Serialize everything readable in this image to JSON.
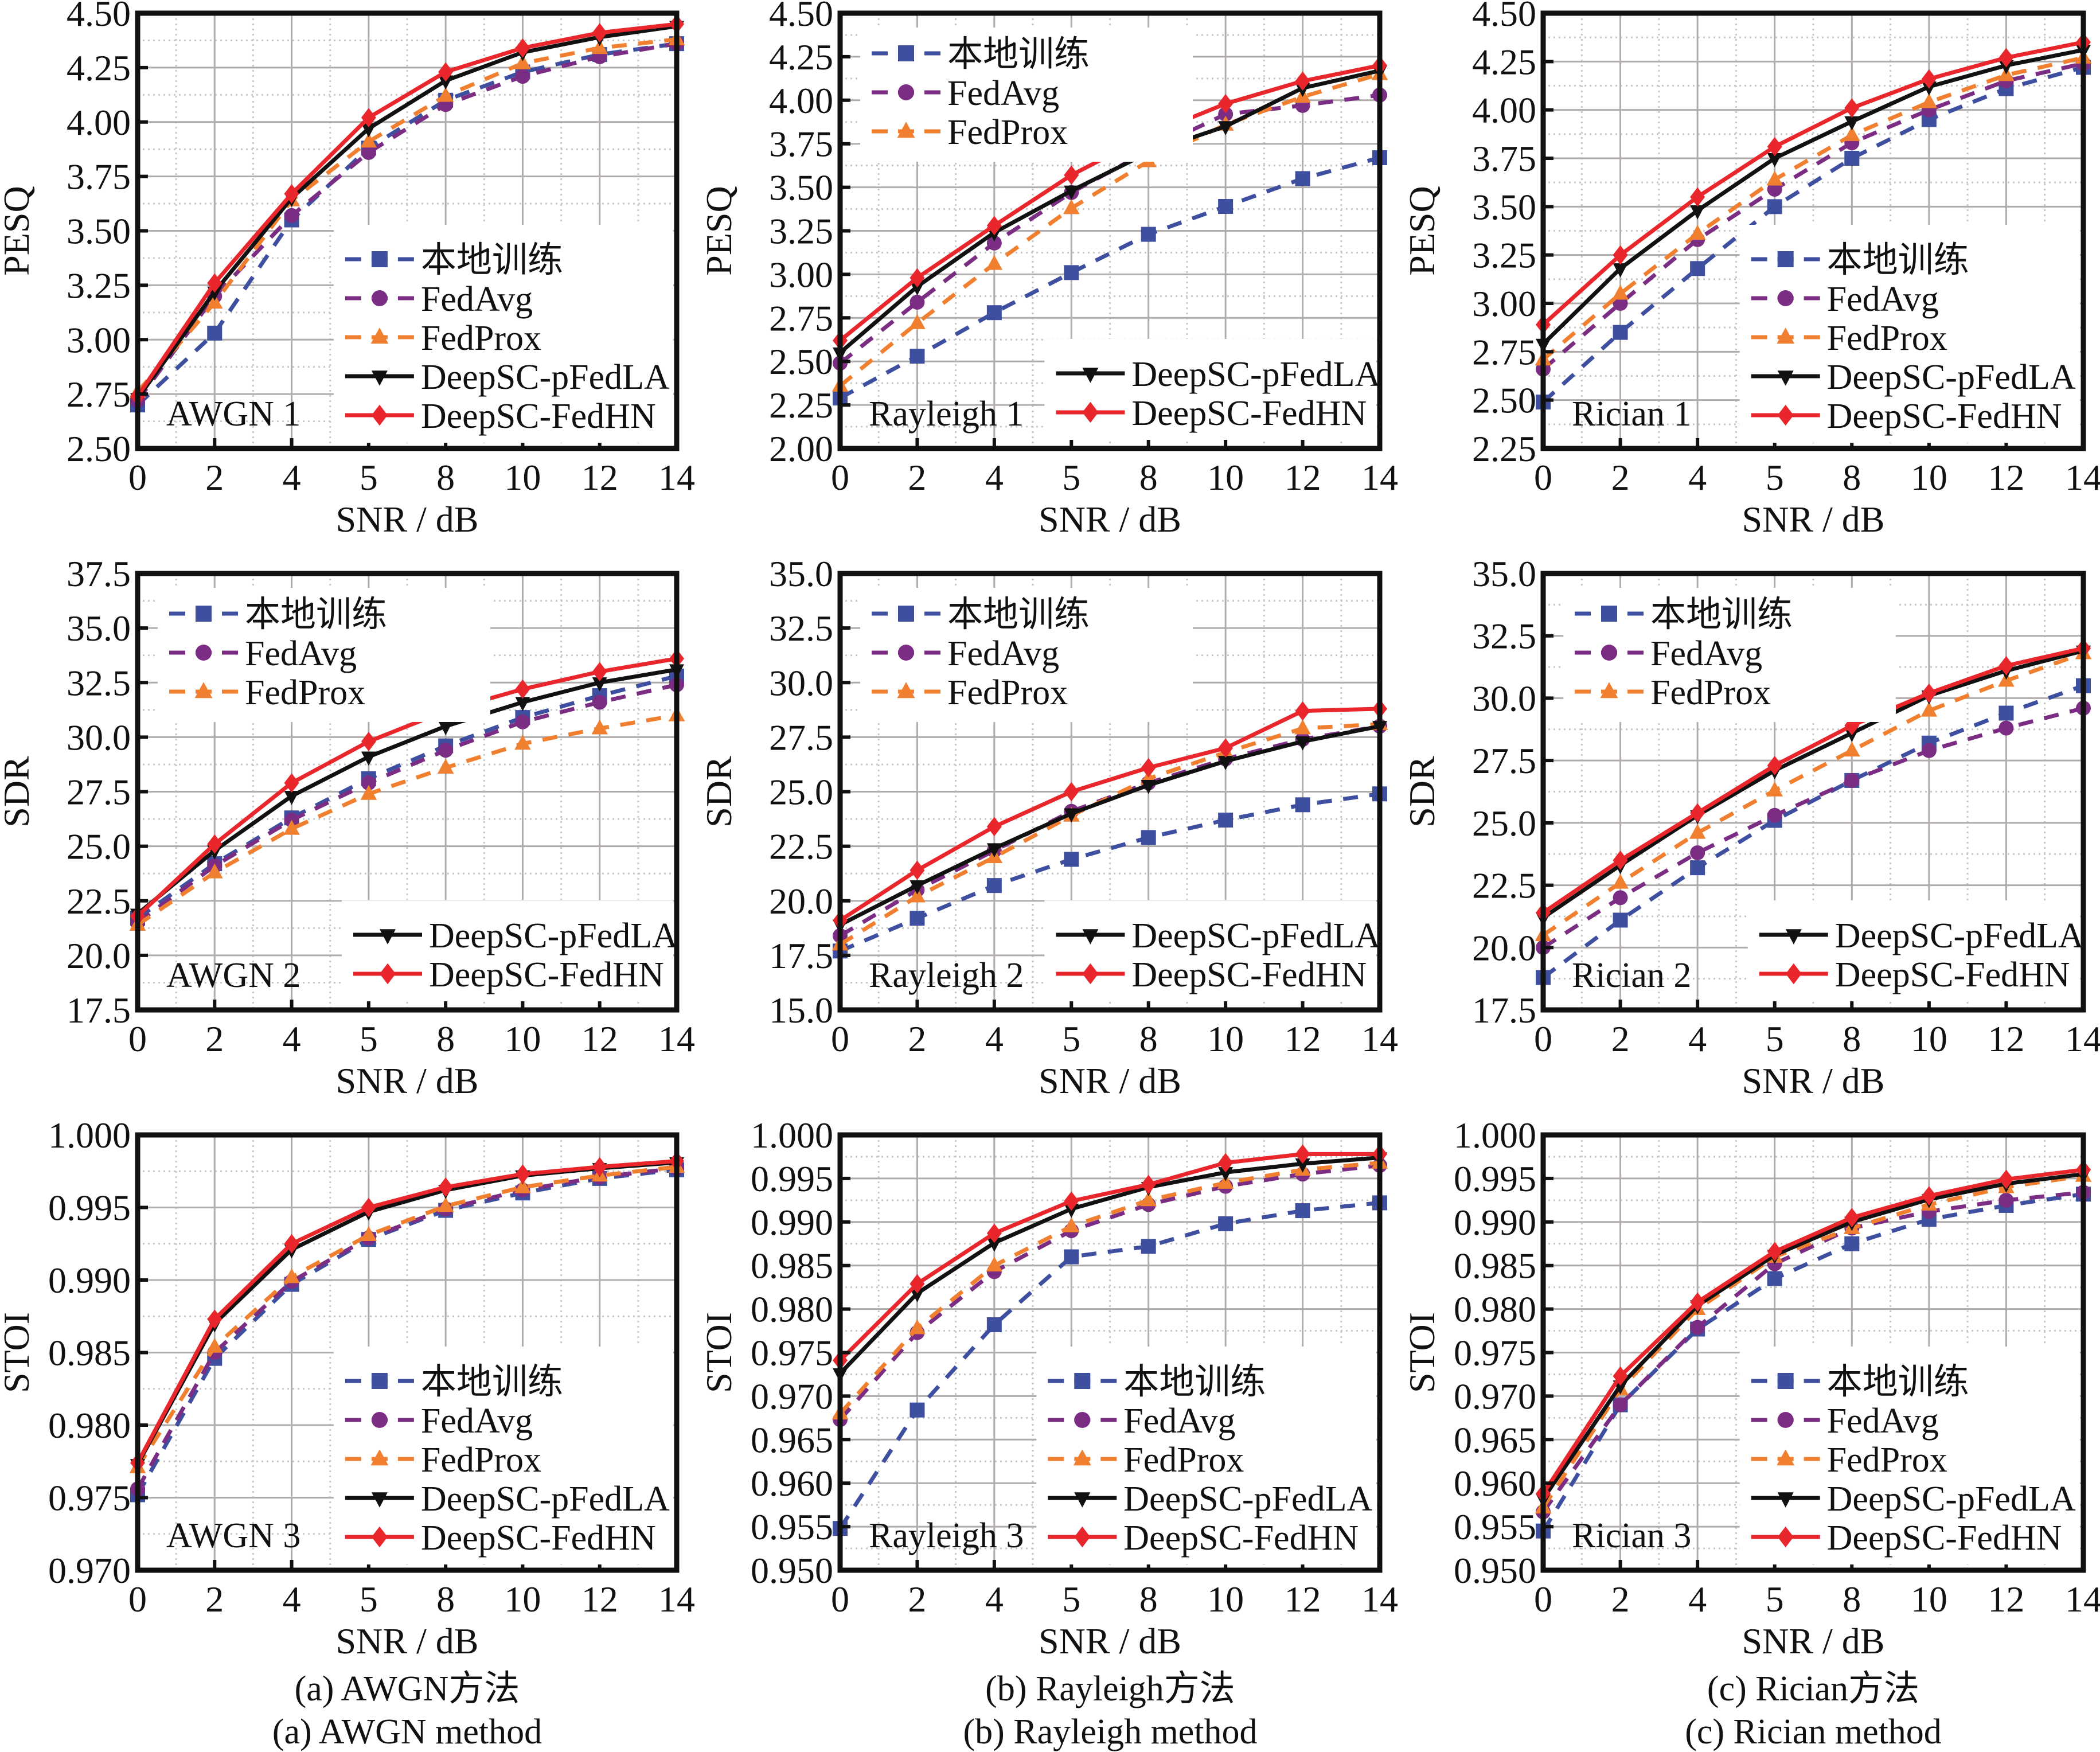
{
  "figure": {
    "x_axis_label": "SNR / dB",
    "captions": [
      {
        "zh": "(a) AWGN方法",
        "en": "(a) AWGN  method"
      },
      {
        "zh": "(b) Rayleigh方法",
        "en": "(b) Rayleigh method"
      },
      {
        "zh": "(c) Rician方法",
        "en": "(c) Rician method"
      }
    ]
  },
  "series_style": [
    {
      "name": "本地训练",
      "color": "#3F4FA0",
      "dash": true,
      "marker": "square"
    },
    {
      "name": "FedAvg",
      "color": "#7B2D83",
      "dash": true,
      "marker": "circle"
    },
    {
      "name": "FedProx",
      "color": "#F08030",
      "dash": true,
      "marker": "triangle-up"
    },
    {
      "name": "DeepSC-pFedLA",
      "color": "#111111",
      "dash": false,
      "marker": "triangle-down"
    },
    {
      "name": "DeepSC-FedHN",
      "color": "#E8262B",
      "dash": false,
      "marker": "diamond"
    }
  ],
  "chart_data": [
    {
      "type": "line",
      "title": "AWGN 1",
      "xlabel": "SNR / dB",
      "ylabel": "PESQ",
      "categories": [
        "0",
        "2",
        "4",
        "5",
        "8",
        "10",
        "12",
        "14"
      ],
      "ylim": [
        2.5,
        4.5
      ],
      "yticks": [
        "2.50",
        "2.75",
        "3.00",
        "3.25",
        "3.50",
        "3.75",
        "4.00",
        "4.25",
        "4.50"
      ],
      "grid": true,
      "legend": "bottom-right",
      "series": [
        {
          "name": "本地训练",
          "values": [
            2.7,
            3.03,
            3.55,
            3.88,
            4.1,
            4.23,
            4.31,
            4.36
          ]
        },
        {
          "name": "FedAvg",
          "values": [
            2.72,
            3.2,
            3.57,
            3.86,
            4.08,
            4.21,
            4.3,
            4.36
          ]
        },
        {
          "name": "FedProx",
          "values": [
            2.76,
            3.17,
            3.64,
            3.91,
            4.12,
            4.27,
            4.34,
            4.38
          ]
        },
        {
          "name": "DeepSC-pFedLA",
          "values": [
            2.73,
            3.22,
            3.65,
            3.97,
            4.19,
            4.32,
            4.39,
            4.44
          ]
        },
        {
          "name": "DeepSC-FedHN",
          "values": [
            2.74,
            3.26,
            3.67,
            4.02,
            4.23,
            4.34,
            4.41,
            4.45
          ]
        }
      ]
    },
    {
      "type": "line",
      "title": "Rayleigh 1",
      "xlabel": "SNR / dB",
      "ylabel": "PESQ",
      "categories": [
        "0",
        "2",
        "4",
        "5",
        "8",
        "10",
        "12",
        "14"
      ],
      "ylim": [
        2.0,
        4.5
      ],
      "yticks": [
        "2.00",
        "2.25",
        "2.50",
        "2.75",
        "3.00",
        "3.25",
        "3.50",
        "3.75",
        "4.00",
        "4.25",
        "4.50"
      ],
      "grid": true,
      "legend": "split: top-left (first 3), bottom-right (last 2)",
      "series": [
        {
          "name": "本地训练",
          "values": [
            2.29,
            2.53,
            2.78,
            3.01,
            3.23,
            3.39,
            3.55,
            3.67
          ]
        },
        {
          "name": "FedAvg",
          "values": [
            2.49,
            2.84,
            3.18,
            3.47,
            3.71,
            3.92,
            3.97,
            4.03
          ]
        },
        {
          "name": "FedProx",
          "values": [
            2.36,
            2.72,
            3.06,
            3.38,
            3.65,
            3.86,
            4.02,
            4.15
          ]
        },
        {
          "name": "DeepSC-pFedLA",
          "values": [
            2.55,
            2.93,
            3.24,
            3.48,
            3.7,
            3.85,
            4.07,
            4.17
          ]
        },
        {
          "name": "DeepSC-FedHN",
          "values": [
            2.62,
            2.98,
            3.28,
            3.57,
            3.8,
            3.98,
            4.11,
            4.2
          ]
        }
      ]
    },
    {
      "type": "line",
      "title": "Rician 1",
      "xlabel": "SNR / dB",
      "ylabel": "PESQ",
      "categories": [
        "0",
        "2",
        "4",
        "5",
        "8",
        "10",
        "12",
        "14"
      ],
      "ylim": [
        2.25,
        4.5
      ],
      "yticks": [
        "2.25",
        "2.50",
        "2.75",
        "3.00",
        "3.25",
        "3.50",
        "3.75",
        "4.00",
        "4.25",
        "4.50"
      ],
      "grid": true,
      "legend": "bottom-right",
      "series": [
        {
          "name": "本地训练",
          "values": [
            2.49,
            2.85,
            3.18,
            3.5,
            3.75,
            3.95,
            4.11,
            4.22
          ]
        },
        {
          "name": "FedAvg",
          "values": [
            2.66,
            3.0,
            3.33,
            3.59,
            3.83,
            4.0,
            4.15,
            4.24
          ]
        },
        {
          "name": "FedProx",
          "values": [
            2.71,
            3.05,
            3.36,
            3.64,
            3.87,
            4.04,
            4.18,
            4.27
          ]
        },
        {
          "name": "DeepSC-pFedLA",
          "values": [
            2.79,
            3.18,
            3.48,
            3.75,
            3.94,
            4.12,
            4.23,
            4.31
          ]
        },
        {
          "name": "DeepSC-FedHN",
          "values": [
            2.89,
            3.25,
            3.55,
            3.81,
            4.01,
            4.16,
            4.27,
            4.35
          ]
        }
      ]
    },
    {
      "type": "line",
      "title": "AWGN 2",
      "xlabel": "SNR / dB",
      "ylabel": "SDR",
      "categories": [
        "0",
        "2",
        "4",
        "5",
        "8",
        "10",
        "12",
        "14"
      ],
      "ylim": [
        17.5,
        37.5
      ],
      "yticks": [
        "17.5",
        "20.0",
        "22.5",
        "25.0",
        "27.5",
        "30.0",
        "32.5",
        "35.0",
        "37.5"
      ],
      "grid": true,
      "legend": "split: top-left (first 3), bottom-right (last 2)",
      "series": [
        {
          "name": "本地训练",
          "values": [
            21.7,
            24.2,
            26.3,
            28.1,
            29.6,
            30.9,
            31.9,
            32.8
          ]
        },
        {
          "name": "FedAvg",
          "values": [
            21.5,
            24.1,
            26.2,
            27.9,
            29.4,
            30.7,
            31.6,
            32.4
          ]
        },
        {
          "name": "FedProx",
          "values": [
            21.4,
            23.8,
            25.8,
            27.4,
            28.6,
            29.7,
            30.4,
            31.0
          ]
        },
        {
          "name": "DeepSC-pFedLA",
          "values": [
            21.9,
            24.8,
            27.3,
            29.1,
            30.5,
            31.6,
            32.5,
            33.1
          ]
        },
        {
          "name": "DeepSC-FedHN",
          "values": [
            21.8,
            25.1,
            27.9,
            29.8,
            31.2,
            32.2,
            33.0,
            33.6
          ]
        }
      ]
    },
    {
      "type": "line",
      "title": "Rayleigh 2",
      "xlabel": "SNR / dB",
      "ylabel": "SDR",
      "categories": [
        "0",
        "2",
        "4",
        "5",
        "8",
        "10",
        "12",
        "14"
      ],
      "ylim": [
        15.0,
        35.0
      ],
      "yticks": [
        "15.0",
        "17.5",
        "20.0",
        "22.5",
        "25.0",
        "27.5",
        "30.0",
        "32.5",
        "35.0"
      ],
      "grid": true,
      "legend": "split: top-left (first 3), bottom-right (last 2)",
      "series": [
        {
          "name": "本地训练",
          "values": [
            17.7,
            19.2,
            20.7,
            21.9,
            22.9,
            23.7,
            24.4,
            24.9
          ]
        },
        {
          "name": "FedAvg",
          "values": [
            18.4,
            20.5,
            22.3,
            24.1,
            25.4,
            26.5,
            27.4,
            28.0
          ]
        },
        {
          "name": "FedProx",
          "values": [
            18.0,
            20.2,
            22.0,
            23.9,
            25.6,
            26.8,
            27.9,
            28.1
          ]
        },
        {
          "name": "DeepSC-pFedLA",
          "values": [
            18.9,
            20.7,
            22.4,
            24.0,
            25.3,
            26.4,
            27.3,
            28.0
          ]
        },
        {
          "name": "DeepSC-FedHN",
          "values": [
            19.1,
            21.4,
            23.4,
            25.0,
            26.1,
            27.0,
            28.7,
            28.8
          ]
        }
      ]
    },
    {
      "type": "line",
      "title": "Rician 2",
      "xlabel": "SNR / dB",
      "ylabel": "SDR",
      "categories": [
        "0",
        "2",
        "4",
        "5",
        "8",
        "10",
        "12",
        "14"
      ],
      "ylim": [
        17.5,
        35.0
      ],
      "yticks": [
        "17.5",
        "20.0",
        "22.5",
        "25.0",
        "27.5",
        "30.0",
        "32.5",
        "35.0"
      ],
      "grid": true,
      "legend": "split: top-left (first 3), bottom-right (last 2)",
      "series": [
        {
          "name": "本地训练",
          "values": [
            18.8,
            21.1,
            23.2,
            25.1,
            26.7,
            28.2,
            29.4,
            30.5
          ]
        },
        {
          "name": "FedAvg",
          "values": [
            20.0,
            22.0,
            23.8,
            25.3,
            26.7,
            27.9,
            28.8,
            29.6
          ]
        },
        {
          "name": "FedProx",
          "values": [
            20.5,
            22.6,
            24.6,
            26.3,
            27.9,
            29.5,
            30.7,
            31.8
          ]
        },
        {
          "name": "DeepSC-pFedLA",
          "values": [
            21.2,
            23.3,
            25.3,
            27.1,
            28.6,
            30.1,
            31.1,
            31.9
          ]
        },
        {
          "name": "DeepSC-FedHN",
          "values": [
            21.4,
            23.5,
            25.4,
            27.3,
            28.9,
            30.2,
            31.3,
            32.0
          ]
        }
      ]
    },
    {
      "type": "line",
      "title": "AWGN 3",
      "xlabel": "SNR / dB",
      "ylabel": "STOI",
      "categories": [
        "0",
        "2",
        "4",
        "5",
        "8",
        "10",
        "12",
        "14"
      ],
      "ylim": [
        0.97,
        1.0
      ],
      "yticks": [
        "0.970",
        "0.975",
        "0.980",
        "0.985",
        "0.990",
        "0.995",
        "1.000"
      ],
      "grid": true,
      "legend": "bottom-right",
      "series": [
        {
          "name": "本地训练",
          "values": [
            0.9752,
            0.9846,
            0.9897,
            0.9928,
            0.9948,
            0.996,
            0.997,
            0.9976
          ]
        },
        {
          "name": "FedAvg",
          "values": [
            0.9756,
            0.985,
            0.9899,
            0.9929,
            0.9949,
            0.9962,
            0.9971,
            0.9977
          ]
        },
        {
          "name": "FedProx",
          "values": [
            0.9771,
            0.9854,
            0.9902,
            0.9931,
            0.9951,
            0.9964,
            0.9972,
            0.9978
          ]
        },
        {
          "name": "DeepSC-pFedLA",
          "values": [
            0.9773,
            0.987,
            0.9921,
            0.9947,
            0.9962,
            0.9972,
            0.9977,
            0.9981
          ]
        },
        {
          "name": "DeepSC-FedHN",
          "values": [
            0.9774,
            0.9873,
            0.9925,
            0.995,
            0.9964,
            0.9973,
            0.9978,
            0.9982
          ]
        }
      ]
    },
    {
      "type": "line",
      "title": "Rayleigh 3",
      "xlabel": "SNR / dB",
      "ylabel": "STOI",
      "categories": [
        "0",
        "2",
        "4",
        "5",
        "8",
        "10",
        "12",
        "14"
      ],
      "ylim": [
        0.95,
        1.0
      ],
      "yticks": [
        "0.950",
        "0.955",
        "0.960",
        "0.965",
        "0.970",
        "0.975",
        "0.980",
        "0.985",
        "0.990",
        "0.995",
        "1.000"
      ],
      "grid": true,
      "legend": "bottom-right",
      "series": [
        {
          "name": "本地训练",
          "values": [
            0.9548,
            0.9684,
            0.9782,
            0.986,
            0.9872,
            0.9898,
            0.9913,
            0.9922
          ]
        },
        {
          "name": "FedAvg",
          "values": [
            0.9673,
            0.9773,
            0.9843,
            0.989,
            0.992,
            0.9941,
            0.9955,
            0.9965
          ]
        },
        {
          "name": "FedProx",
          "values": [
            0.968,
            0.9778,
            0.985,
            0.9895,
            0.9925,
            0.9945,
            0.996,
            0.9968
          ]
        },
        {
          "name": "DeepSC-pFedLA",
          "values": [
            0.9726,
            0.9818,
            0.9876,
            0.9915,
            0.994,
            0.9957,
            0.9967,
            0.9974
          ]
        },
        {
          "name": "DeepSC-FedHN",
          "values": [
            0.9741,
            0.9829,
            0.9887,
            0.9924,
            0.9943,
            0.9968,
            0.9978,
            0.9978
          ]
        }
      ]
    },
    {
      "type": "line",
      "title": "Rician 3",
      "xlabel": "SNR / dB",
      "ylabel": "STOI",
      "categories": [
        "0",
        "2",
        "4",
        "5",
        "8",
        "10",
        "12",
        "14"
      ],
      "ylim": [
        0.95,
        1.0
      ],
      "yticks": [
        "0.950",
        "0.955",
        "0.960",
        "0.965",
        "0.970",
        "0.975",
        "0.980",
        "0.985",
        "0.990",
        "0.995",
        "1.000"
      ],
      "grid": true,
      "legend": "bottom-right",
      "series": [
        {
          "name": "本地训练",
          "values": [
            0.9545,
            0.969,
            0.9777,
            0.9835,
            0.9875,
            0.9903,
            0.9919,
            0.9932
          ]
        },
        {
          "name": "FedAvg",
          "values": [
            0.9567,
            0.969,
            0.9779,
            0.9852,
            0.9893,
            0.9912,
            0.9925,
            0.9934
          ]
        },
        {
          "name": "FedProx",
          "values": [
            0.9572,
            0.9708,
            0.98,
            0.986,
            0.9893,
            0.992,
            0.994,
            0.9953
          ]
        },
        {
          "name": "DeepSC-pFedLA",
          "values": [
            0.9582,
            0.9712,
            0.9804,
            0.9862,
            0.99,
            0.9926,
            0.9944,
            0.9955
          ]
        },
        {
          "name": "DeepSC-FedHN",
          "values": [
            0.9588,
            0.9723,
            0.9808,
            0.9866,
            0.9905,
            0.993,
            0.9949,
            0.996
          ]
        }
      ]
    }
  ]
}
